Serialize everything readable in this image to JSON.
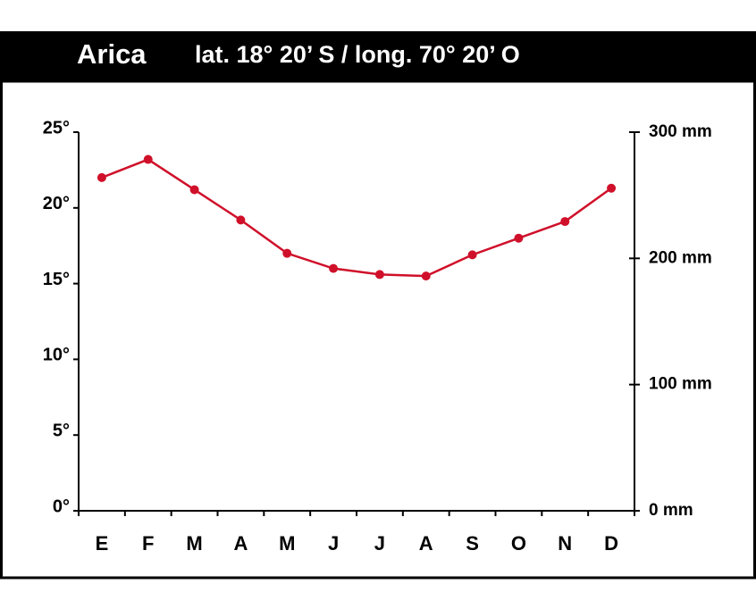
{
  "chart_data": {
    "type": "line",
    "title": "Arica",
    "subtitle": "lat. 18° 20’ S / long. 70° 20’ O",
    "categories": [
      "E",
      "F",
      "M",
      "A",
      "M",
      "J",
      "J",
      "A",
      "S",
      "O",
      "N",
      "D"
    ],
    "values": [
      22.0,
      23.2,
      21.2,
      19.2,
      17.0,
      16.0,
      15.6,
      15.5,
      16.9,
      18.0,
      19.1,
      21.3
    ],
    "color": "#d0102a",
    "ylim": [
      0,
      25
    ],
    "yticks": [
      {
        "value": 0,
        "label": "0°"
      },
      {
        "value": 5,
        "label": "5°"
      },
      {
        "value": 10,
        "label": "10°"
      },
      {
        "value": 15,
        "label": "15°"
      },
      {
        "value": 20,
        "label": "20°"
      },
      {
        "value": 25,
        "label": "25°"
      }
    ],
    "y2lim": [
      0,
      300
    ],
    "y2ticks": [
      {
        "value": 0,
        "label": "0 mm"
      },
      {
        "value": 100,
        "label": "100 mm"
      },
      {
        "value": 200,
        "label": "200 mm"
      },
      {
        "value": 300,
        "label": "300 mm"
      }
    ]
  }
}
